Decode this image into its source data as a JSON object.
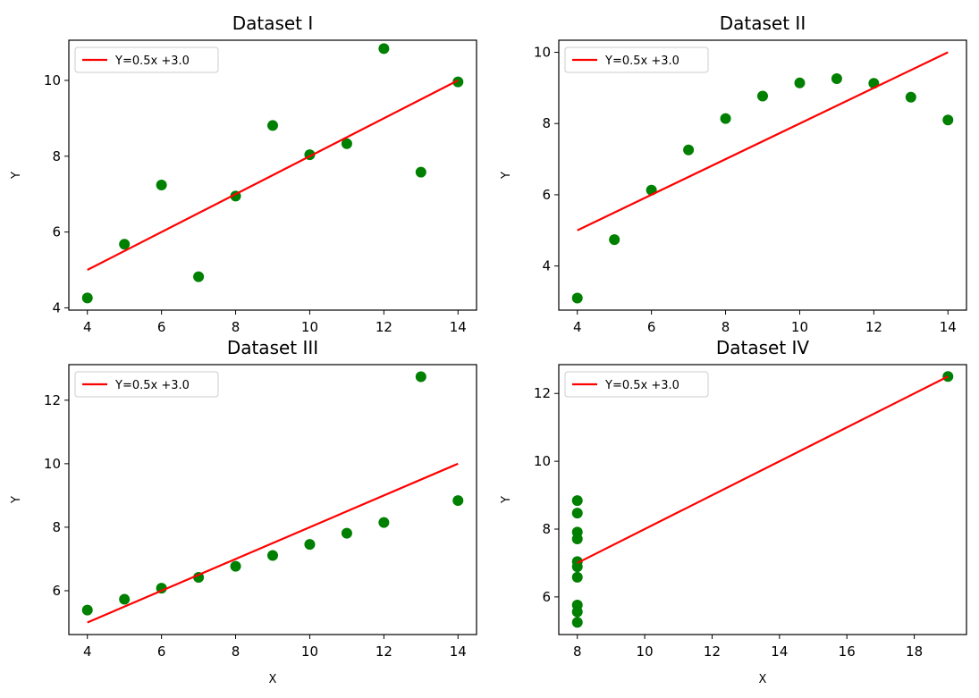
{
  "colors": {
    "points": "#008000",
    "line": "#ff0000",
    "axes": "#000000"
  },
  "chart_data": [
    {
      "type": "scatter",
      "title": "Dataset I",
      "xlabel": "",
      "ylabel": "Y",
      "xlim": [
        3.5,
        14.5
      ],
      "ylim": [
        3.94,
        11.06
      ],
      "xticks": [
        4,
        6,
        8,
        10,
        12,
        14
      ],
      "yticks": [
        4,
        6,
        8,
        10
      ],
      "legend": {
        "placement": "upper-left",
        "entries": [
          "Y=0.5x +3.0"
        ]
      },
      "series": [
        {
          "kind": "scatter",
          "x": [
            10,
            8,
            13,
            9,
            11,
            14,
            6,
            4,
            12,
            7,
            5
          ],
          "y": [
            8.04,
            6.95,
            7.58,
            8.81,
            8.33,
            9.96,
            7.24,
            4.26,
            10.84,
            4.82,
            5.68
          ]
        },
        {
          "kind": "line",
          "name": "Y=0.5x +3.0",
          "x": [
            4,
            14
          ],
          "y": [
            5.0,
            10.0
          ]
        }
      ]
    },
    {
      "type": "scatter",
      "title": "Dataset II",
      "xlabel": "",
      "ylabel": "Y",
      "xlim": [
        3.5,
        14.5
      ],
      "ylim": [
        2.76,
        10.34
      ],
      "xticks": [
        4,
        6,
        8,
        10,
        12,
        14
      ],
      "yticks": [
        4,
        6,
        8,
        10
      ],
      "legend": {
        "placement": "upper-left",
        "entries": [
          "Y=0.5x +3.0"
        ]
      },
      "series": [
        {
          "kind": "scatter",
          "x": [
            10,
            8,
            13,
            9,
            11,
            14,
            6,
            4,
            12,
            7,
            5
          ],
          "y": [
            9.14,
            8.14,
            8.74,
            8.77,
            9.26,
            8.1,
            6.13,
            3.1,
            9.13,
            7.26,
            4.74
          ]
        },
        {
          "kind": "line",
          "name": "Y=0.5x +3.0",
          "x": [
            4,
            14
          ],
          "y": [
            5.0,
            10.0
          ]
        }
      ]
    },
    {
      "type": "scatter",
      "title": "Dataset III",
      "xlabel": "X",
      "ylabel": "Y",
      "xlim": [
        3.5,
        14.5
      ],
      "ylim": [
        4.62,
        13.12
      ],
      "xticks": [
        4,
        6,
        8,
        10,
        12,
        14
      ],
      "yticks": [
        6,
        8,
        10,
        12
      ],
      "legend": {
        "placement": "upper-left",
        "entries": [
          "Y=0.5x +3.0"
        ]
      },
      "series": [
        {
          "kind": "scatter",
          "x": [
            10,
            8,
            13,
            9,
            11,
            14,
            6,
            4,
            12,
            7,
            5
          ],
          "y": [
            7.46,
            6.77,
            12.74,
            7.11,
            7.81,
            8.84,
            6.08,
            5.39,
            8.15,
            6.42,
            5.73
          ]
        },
        {
          "kind": "line",
          "name": "Y=0.5x +3.0",
          "x": [
            4,
            14
          ],
          "y": [
            5.0,
            10.0
          ]
        }
      ]
    },
    {
      "type": "scatter",
      "title": "Dataset IV",
      "xlabel": "X",
      "ylabel": "Y",
      "xlim": [
        7.45,
        19.55
      ],
      "ylim": [
        4.89,
        12.85
      ],
      "xticks": [
        8,
        10,
        12,
        14,
        16,
        18
      ],
      "yticks": [
        6,
        8,
        10,
        12
      ],
      "legend": {
        "placement": "upper-left",
        "entries": [
          "Y=0.5x +3.0"
        ]
      },
      "series": [
        {
          "kind": "scatter",
          "x": [
            8,
            8,
            8,
            8,
            8,
            8,
            8,
            19,
            8,
            8,
            8
          ],
          "y": [
            6.58,
            5.76,
            7.71,
            8.84,
            8.47,
            7.04,
            5.25,
            12.5,
            5.56,
            7.91,
            6.89
          ]
        },
        {
          "kind": "line",
          "name": "Y=0.5x +3.0",
          "x": [
            8,
            19
          ],
          "y": [
            7.0,
            12.5
          ]
        }
      ]
    }
  ]
}
